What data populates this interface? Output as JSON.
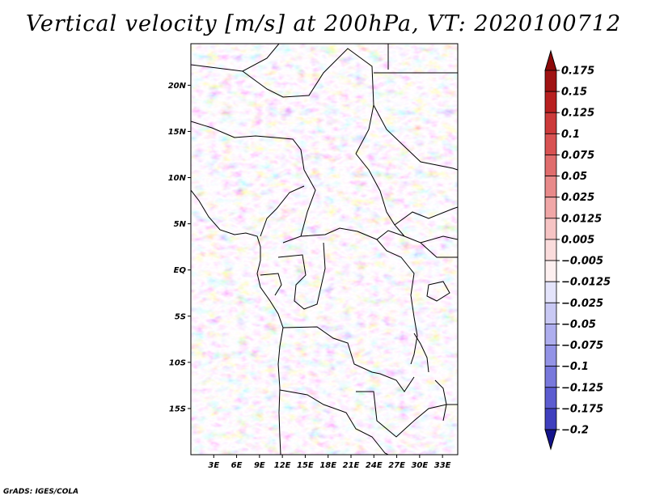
{
  "title": "Vertical velocity [m/s] at 200hPa, VT: 2020100712",
  "credit": "GrADS: IGES/COLA",
  "map": {
    "lat_range": [
      -20,
      24.5
    ],
    "lon_range": [
      0,
      35
    ],
    "lat_ticks": [
      {
        "value": 20,
        "label": "20N"
      },
      {
        "value": 15,
        "label": "15N"
      },
      {
        "value": 10,
        "label": "10N"
      },
      {
        "value": 5,
        "label": "5N"
      },
      {
        "value": 0,
        "label": "EQ"
      },
      {
        "value": -5,
        "label": "5S"
      },
      {
        "value": -10,
        "label": "10S"
      },
      {
        "value": -15,
        "label": "15S"
      }
    ],
    "lon_ticks": [
      {
        "value": 3,
        "label": "3E"
      },
      {
        "value": 6,
        "label": "6E"
      },
      {
        "value": 9,
        "label": "9E"
      },
      {
        "value": 12,
        "label": "12E"
      },
      {
        "value": 15,
        "label": "15E"
      },
      {
        "value": 18,
        "label": "18E"
      },
      {
        "value": 21,
        "label": "21E"
      },
      {
        "value": 24,
        "label": "24E"
      },
      {
        "value": 27,
        "label": "27E"
      },
      {
        "value": 30,
        "label": "30E"
      },
      {
        "value": 33,
        "label": "33E"
      }
    ]
  },
  "colorbar": {
    "levels": [
      {
        "label": "0.175",
        "color": "#a01313"
      },
      {
        "label": "0.15",
        "color": "#b82020"
      },
      {
        "label": "0.125",
        "color": "#cc3a3a"
      },
      {
        "label": "0.1",
        "color": "#d85252"
      },
      {
        "label": "0.075",
        "color": "#e06d6d"
      },
      {
        "label": "0.05",
        "color": "#e88a8a"
      },
      {
        "label": "0.025",
        "color": "#f0a7a7"
      },
      {
        "label": "0.0125",
        "color": "#f6c4c4"
      },
      {
        "label": "0.005",
        "color": "#fadcdc"
      },
      {
        "label": "−0.005",
        "color": "#fdf0f0"
      },
      {
        "label": "−0.0125",
        "color": "#e4e4fb"
      },
      {
        "label": "−0.025",
        "color": "#c9c9f4"
      },
      {
        "label": "−0.05",
        "color": "#aeaeee"
      },
      {
        "label": "−0.075",
        "color": "#9393e6"
      },
      {
        "label": "−0.1",
        "color": "#7878dc"
      },
      {
        "label": "−0.125",
        "color": "#5c5cd0"
      },
      {
        "label": "−0.175",
        "color": "#3f3fbe"
      },
      {
        "label": "−0.2",
        "color": "#2626a8"
      }
    ],
    "top_arrow_color": "#8c0a0a",
    "bottom_arrow_color": "#14148c"
  }
}
